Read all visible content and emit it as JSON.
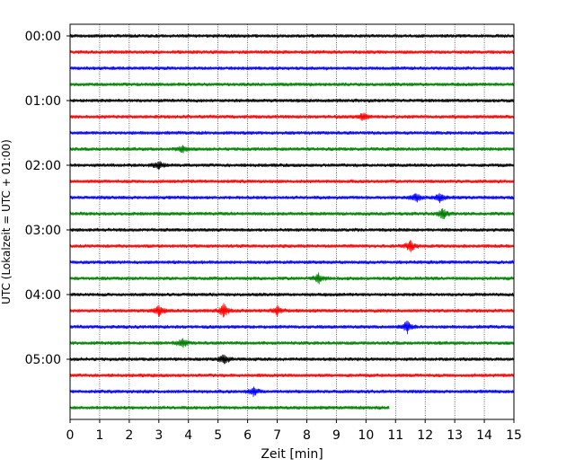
{
  "chart_data": {
    "type": "line",
    "title": "",
    "xlabel": "Zeit  [min]",
    "ylabel": "UTC (Lokalzeit = UTC + 01:00)",
    "xlim": [
      0,
      15
    ],
    "x_ticks": [
      0,
      1,
      2,
      3,
      4,
      5,
      6,
      7,
      8,
      9,
      10,
      11,
      12,
      13,
      14,
      15
    ],
    "y_tick_labels": [
      "00:00",
      "01:00",
      "02:00",
      "03:00",
      "04:00",
      "05:00"
    ],
    "grid": "vertical dotted",
    "legend": "none",
    "colors": [
      "#000000",
      "#ff0000",
      "#0000ff",
      "#008000"
    ],
    "traces": [
      {
        "start": "00:00",
        "color": "#000000",
        "end_min": 15,
        "events": []
      },
      {
        "start": "00:15",
        "color": "#ff0000",
        "end_min": 15,
        "events": []
      },
      {
        "start": "00:30",
        "color": "#0000ff",
        "end_min": 15,
        "events": []
      },
      {
        "start": "00:45",
        "color": "#008000",
        "end_min": 15,
        "events": []
      },
      {
        "start": "01:00",
        "color": "#000000",
        "end_min": 15,
        "events": []
      },
      {
        "start": "01:15",
        "color": "#ff0000",
        "end_min": 15,
        "events": [
          {
            "t": 9.9,
            "amp": 4
          }
        ]
      },
      {
        "start": "01:30",
        "color": "#0000ff",
        "end_min": 15,
        "events": []
      },
      {
        "start": "01:45",
        "color": "#008000",
        "end_min": 15,
        "events": [
          {
            "t": 3.8,
            "amp": 4
          }
        ]
      },
      {
        "start": "02:00",
        "color": "#000000",
        "end_min": 15,
        "events": [
          {
            "t": 3.0,
            "amp": 4
          }
        ]
      },
      {
        "start": "02:15",
        "color": "#ff0000",
        "end_min": 15,
        "events": []
      },
      {
        "start": "02:30",
        "color": "#0000ff",
        "end_min": 15,
        "events": [
          {
            "t": 11.7,
            "amp": 5
          },
          {
            "t": 12.5,
            "amp": 5
          }
        ]
      },
      {
        "start": "02:45",
        "color": "#008000",
        "end_min": 15,
        "events": [
          {
            "t": 12.6,
            "amp": 6
          }
        ]
      },
      {
        "start": "03:00",
        "color": "#000000",
        "end_min": 15,
        "events": []
      },
      {
        "start": "03:15",
        "color": "#ff0000",
        "end_min": 15,
        "events": [
          {
            "t": 11.5,
            "amp": 6
          }
        ]
      },
      {
        "start": "03:30",
        "color": "#0000ff",
        "end_min": 15,
        "events": []
      },
      {
        "start": "03:45",
        "color": "#008000",
        "end_min": 15,
        "events": [
          {
            "t": 8.4,
            "amp": 5
          }
        ]
      },
      {
        "start": "04:00",
        "color": "#000000",
        "end_min": 15,
        "events": []
      },
      {
        "start": "04:15",
        "color": "#ff0000",
        "end_min": 15,
        "events": [
          {
            "t": 3.0,
            "amp": 6
          },
          {
            "t": 5.2,
            "amp": 7
          },
          {
            "t": 7.0,
            "amp": 5
          }
        ]
      },
      {
        "start": "04:30",
        "color": "#0000ff",
        "end_min": 15,
        "events": [
          {
            "t": 11.4,
            "amp": 7
          }
        ]
      },
      {
        "start": "04:45",
        "color": "#008000",
        "end_min": 15,
        "events": [
          {
            "t": 3.8,
            "amp": 5
          }
        ]
      },
      {
        "start": "05:00",
        "color": "#000000",
        "end_min": 15,
        "events": [
          {
            "t": 5.2,
            "amp": 6
          }
        ]
      },
      {
        "start": "05:15",
        "color": "#ff0000",
        "end_min": 15,
        "events": []
      },
      {
        "start": "05:30",
        "color": "#0000ff",
        "end_min": 15,
        "events": [
          {
            "t": 6.2,
            "amp": 5
          }
        ]
      },
      {
        "start": "05:45",
        "color": "#008000",
        "end_min": 10.8,
        "events": []
      }
    ]
  }
}
